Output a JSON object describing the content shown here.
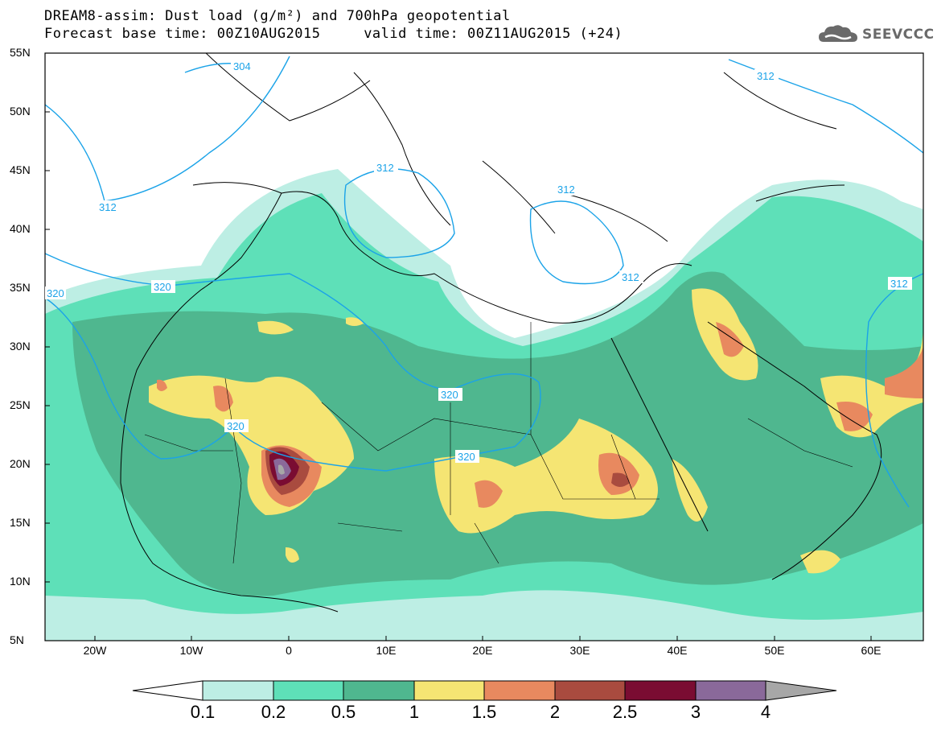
{
  "title": {
    "line1": "DREAM8-assim: Dust load (g/m²) and 700hPa geopotential",
    "line2": "Forecast base time: 00Z10AUG2015     valid time: 00Z11AUG2015 (+24)"
  },
  "logo": {
    "text": "SEEVCCC",
    "icon": "cloud-logo-icon"
  },
  "map": {
    "lat_labels": [
      "55N",
      "50N",
      "45N",
      "40N",
      "35N",
      "30N",
      "25N",
      "20N",
      "15N",
      "10N",
      "5N"
    ],
    "lon_labels": [
      "20W",
      "10W",
      "0",
      "10E",
      "20E",
      "30E",
      "40E",
      "50E",
      "60E"
    ],
    "contour_labels": [
      "304",
      "312",
      "312",
      "312",
      "312",
      "312",
      "320",
      "320",
      "320",
      "320",
      "320",
      "312"
    ]
  },
  "colorbar": {
    "labels": [
      "0.1",
      "0.2",
      "0.5",
      "1",
      "1.5",
      "2",
      "2.5",
      "3",
      "4"
    ],
    "colors": [
      "#ffffff",
      "#bdeee4",
      "#5ee0b8",
      "#4fb78f",
      "#f5e573",
      "#e8895f",
      "#a94b3f",
      "#7a0c32",
      "#8a699a",
      "#a7a7a7"
    ]
  }
}
